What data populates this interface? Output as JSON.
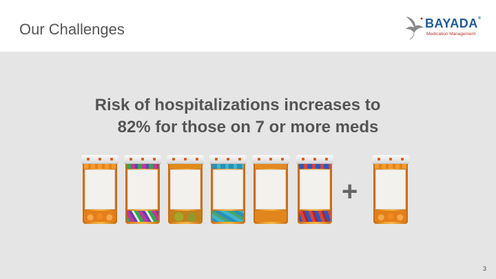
{
  "header": {
    "title": "Our Challenges",
    "logo": {
      "wordmark": "BAYADA",
      "registered": "®",
      "tagline": "Medication Management"
    }
  },
  "main": {
    "headline_line1": "Risk of hospitalizations increases to",
    "headline_line2": "82% for those on 7 or more meds",
    "plus_sign": "+",
    "bottles": [
      {
        "pills": "orange"
      },
      {
        "pills": "green-pink-purple"
      },
      {
        "pills": "yellow-green"
      },
      {
        "pills": "teal-blue"
      },
      {
        "pills": "orange"
      },
      {
        "pills": "red-blue"
      },
      {
        "pills": "orange"
      }
    ]
  },
  "footer": {
    "page_number": "3"
  },
  "colors": {
    "title_gray": "#555555",
    "panel_bg": "#e5e5e5",
    "logo_blue": "#1d5b9a",
    "logo_red": "#b7332b",
    "bottle_amber": "#f0a530"
  }
}
